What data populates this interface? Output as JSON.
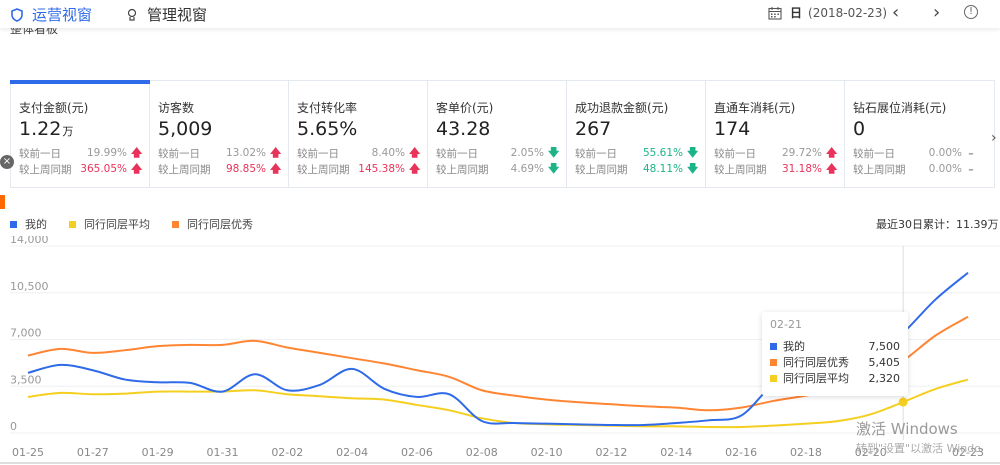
{
  "topbar": {
    "tabs": [
      {
        "label": "运营视窗",
        "icon": "shield-icon",
        "active": true
      },
      {
        "label": "管理视窗",
        "icon": "bulb-icon",
        "active": false
      }
    ],
    "date": {
      "granularity": "日",
      "value": "(2018-02-23)"
    },
    "prev_label": "‹",
    "next_label": "›",
    "info_label": "!"
  },
  "subheader": {
    "title_partial": "整体看板"
  },
  "metrics": [
    {
      "label": "支付金额(元)",
      "value": "1.22",
      "unit": "万",
      "day": {
        "label": "较前一日",
        "pct": "19.99%",
        "dir": "up",
        "pct_color": "neutral"
      },
      "week": {
        "label": "较上周同期",
        "pct": "365.05%",
        "dir": "up",
        "pct_color": "up"
      }
    },
    {
      "label": "访客数",
      "value": "5,009",
      "unit": "",
      "day": {
        "label": "较前一日",
        "pct": "13.02%",
        "dir": "up",
        "pct_color": "neutral"
      },
      "week": {
        "label": "较上周同期",
        "pct": "98.85%",
        "dir": "up",
        "pct_color": "up"
      }
    },
    {
      "label": "支付转化率",
      "value": "5.65%",
      "unit": "",
      "day": {
        "label": "较前一日",
        "pct": "8.40%",
        "dir": "up",
        "pct_color": "neutral"
      },
      "week": {
        "label": "较上周同期",
        "pct": "145.38%",
        "dir": "up",
        "pct_color": "up"
      }
    },
    {
      "label": "客单价(元)",
      "value": "43.28",
      "unit": "",
      "day": {
        "label": "较前一日",
        "pct": "2.05%",
        "dir": "down",
        "pct_color": "neutral"
      },
      "week": {
        "label": "较上周同期",
        "pct": "4.69%",
        "dir": "down",
        "pct_color": "neutral"
      }
    },
    {
      "label": "成功退款金额(元)",
      "value": "267",
      "unit": "",
      "day": {
        "label": "较前一日",
        "pct": "55.61%",
        "dir": "down",
        "pct_color": "down"
      },
      "week": {
        "label": "较上周同期",
        "pct": "48.11%",
        "dir": "down",
        "pct_color": "down"
      }
    },
    {
      "label": "直通车消耗(元)",
      "value": "174",
      "unit": "",
      "day": {
        "label": "较前一日",
        "pct": "29.72%",
        "dir": "up",
        "pct_color": "neutral"
      },
      "week": {
        "label": "较上周同期",
        "pct": "31.18%",
        "dir": "up",
        "pct_color": "up"
      }
    },
    {
      "label": "钻石展位消耗(元)",
      "value": "0",
      "unit": "",
      "day": {
        "label": "较前一日",
        "pct": "0.00%",
        "dir": "flat",
        "pct_color": "neutral"
      },
      "week": {
        "label": "较上周同期",
        "pct": "0.00%",
        "dir": "flat",
        "pct_color": "neutral"
      }
    }
  ],
  "arrows": {
    "up": "🡅",
    "down": "🡇",
    "flat": "–"
  },
  "legend": [
    {
      "label": "我的",
      "color": "#2f6be8"
    },
    {
      "label": "同行同层平均",
      "color": "#f5cf1f"
    },
    {
      "label": "同行同层优秀",
      "color": "#ff8533"
    }
  ],
  "total_label": "最近30日累计：11.39万",
  "tooltip": {
    "date": "02-21",
    "rows": [
      {
        "label": "我的",
        "value": "7,500",
        "color": "#2f6be8"
      },
      {
        "label": "同行同层优秀",
        "value": "5,405",
        "color": "#ff8533"
      },
      {
        "label": "同行同层平均",
        "value": "2,320",
        "color": "#f5cf1f"
      }
    ]
  },
  "watermark": {
    "line1": "激活 Windows",
    "line2": "转到\"设置\"以激活 Windo"
  },
  "chart_data": {
    "type": "line",
    "title": "",
    "xlabel": "",
    "ylabel": "",
    "ylim": [
      0,
      14000
    ],
    "yticks": [
      "0",
      "3,500",
      "7,000",
      "10,500",
      "14,000"
    ],
    "xticks": [
      "01-25",
      "01-27",
      "01-29",
      "01-31",
      "02-02",
      "02-04",
      "02-06",
      "02-08",
      "02-10",
      "02-12",
      "02-14",
      "02-16",
      "02-18",
      "02-20",
      "02-23"
    ],
    "x": [
      "01-25",
      "01-26",
      "01-27",
      "01-28",
      "01-29",
      "01-30",
      "01-31",
      "02-01",
      "02-02",
      "02-03",
      "02-04",
      "02-05",
      "02-06",
      "02-07",
      "02-08",
      "02-09",
      "02-10",
      "02-11",
      "02-12",
      "02-13",
      "02-14",
      "02-15",
      "02-16",
      "02-17",
      "02-18",
      "02-19",
      "02-20",
      "02-21",
      "02-22",
      "02-23"
    ],
    "series": [
      {
        "name": "我的",
        "color": "#2f6be8",
        "values": [
          4500,
          5100,
          4700,
          4000,
          3800,
          3750,
          3100,
          4400,
          3200,
          3600,
          4800,
          3300,
          2700,
          2900,
          900,
          750,
          700,
          650,
          600,
          600,
          750,
          950,
          1300,
          3600,
          4200,
          4800,
          5500,
          7500,
          10000,
          12000
        ]
      },
      {
        "name": "同行同层平均",
        "color": "#f5cf1f",
        "values": [
          2700,
          3000,
          2900,
          2950,
          3100,
          3100,
          3100,
          3200,
          2900,
          2750,
          2600,
          2500,
          2100,
          1700,
          1100,
          750,
          650,
          600,
          550,
          500,
          500,
          450,
          450,
          550,
          700,
          900,
          1400,
          2320,
          3300,
          4000
        ]
      },
      {
        "name": "同行同层优秀",
        "color": "#ff8533",
        "values": [
          5800,
          6300,
          6000,
          6200,
          6500,
          6600,
          6600,
          6900,
          6400,
          6000,
          5600,
          5200,
          4700,
          4200,
          3200,
          2800,
          2500,
          2300,
          2150,
          2000,
          1900,
          1700,
          1900,
          2400,
          2800,
          3300,
          3900,
          5405,
          7300,
          8700
        ]
      }
    ],
    "grid": true,
    "legend_position": "top-left",
    "highlight_index": 27
  }
}
